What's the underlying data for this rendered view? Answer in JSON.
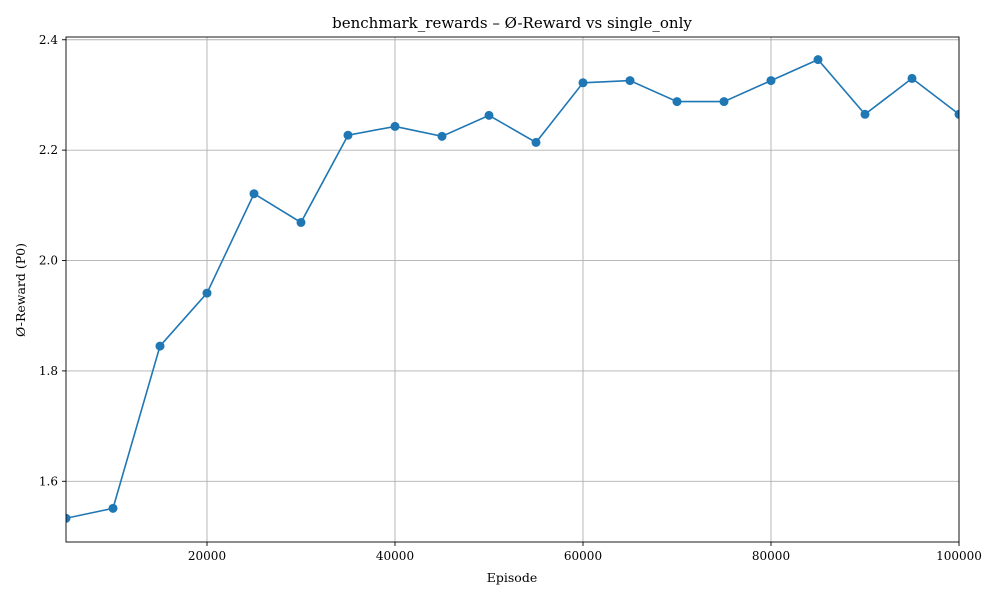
{
  "chart_data": {
    "type": "line",
    "title": "benchmark_rewards – Ø-Reward vs single_only",
    "xlabel": "Episode",
    "ylabel": "Ø-Reward (P0)",
    "xlim": [
      5000,
      100000
    ],
    "ylim": [
      1.49,
      2.405
    ],
    "xticks": [
      20000,
      40000,
      60000,
      80000,
      100000
    ],
    "xtick_labels": [
      "20000",
      "40000",
      "60000",
      "80000",
      "100000"
    ],
    "yticks": [
      1.6,
      1.8,
      2.0,
      2.2,
      2.4
    ],
    "ytick_labels": [
      "1.6",
      "1.8",
      "2.0",
      "2.2",
      "2.4"
    ],
    "grid": true,
    "color": "#1f77b4",
    "series": [
      {
        "x": [
          5000,
          10000,
          15000,
          20000,
          25000,
          30000,
          35000,
          40000,
          45000,
          50000,
          55000,
          60000,
          65000,
          70000,
          75000,
          80000,
          85000,
          90000,
          95000,
          100000
        ],
        "values": [
          1.533,
          1.551,
          1.845,
          1.941,
          2.121,
          2.069,
          2.227,
          2.243,
          2.225,
          2.263,
          2.214,
          2.322,
          2.326,
          2.288,
          2.288,
          2.326,
          2.364,
          2.265,
          2.33,
          2.265
        ]
      }
    ]
  }
}
